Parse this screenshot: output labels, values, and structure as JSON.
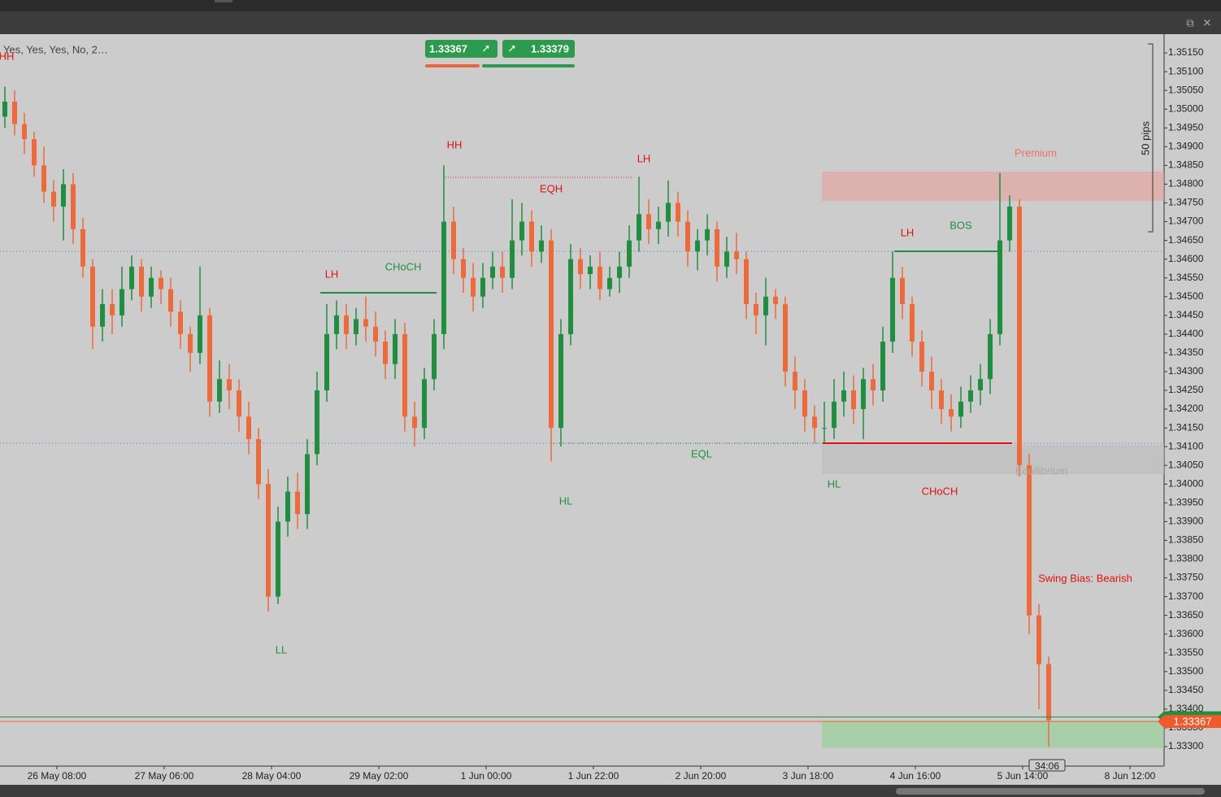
{
  "chart_data": {
    "type": "candlestick",
    "indicator_label": "Yes, Yes, Yes, No, 2…",
    "quotes": [
      1.33367,
      1.33379
    ],
    "last_price": 1.33367,
    "ask_price": 1.33379,
    "countdown": "34:06",
    "range_label": "50 pips",
    "annotations": [
      "HH",
      "HH",
      "LH",
      "EQH",
      "LH",
      "CHoCH",
      "LL",
      "HL",
      "EQL",
      "HL",
      "CHoCH",
      "LH",
      "BOS",
      "Premium",
      "Equilibrium",
      "Swing Bias: Bearish"
    ],
    "colors": {
      "up": "#1f8f3f",
      "down": "#ee6a3a"
    },
    "ylim": [
      1.33248,
      1.352
    ],
    "yticks": [
      {
        "value": 1.333,
        "label": "1.33300"
      },
      {
        "value": 1.3335,
        "label": "1.33350"
      },
      {
        "value": 1.334,
        "label": "1.33400"
      },
      {
        "value": 1.3345,
        "label": "1.33450"
      },
      {
        "value": 1.335,
        "label": "1.33500"
      },
      {
        "value": 1.3355,
        "label": "1.33550"
      },
      {
        "value": 1.336,
        "label": "1.33600"
      },
      {
        "value": 1.3365,
        "label": "1.33650"
      },
      {
        "value": 1.337,
        "label": "1.33700"
      },
      {
        "value": 1.3375,
        "label": "1.33750"
      },
      {
        "value": 1.338,
        "label": "1.33800"
      },
      {
        "value": 1.3385,
        "label": "1.33850"
      },
      {
        "value": 1.339,
        "label": "1.33900"
      },
      {
        "value": 1.3395,
        "label": "1.33950"
      },
      {
        "value": 1.34,
        "label": "1.34000"
      },
      {
        "value": 1.3405,
        "label": "1.34050"
      },
      {
        "value": 1.341,
        "label": "1.34100"
      },
      {
        "value": 1.3415,
        "label": "1.34150"
      },
      {
        "value": 1.342,
        "label": "1.34200"
      },
      {
        "value": 1.3425,
        "label": "1.34250"
      },
      {
        "value": 1.343,
        "label": "1.34300"
      },
      {
        "value": 1.3435,
        "label": "1.34350"
      },
      {
        "value": 1.344,
        "label": "1.34400"
      },
      {
        "value": 1.3445,
        "label": "1.34450"
      },
      {
        "value": 1.345,
        "label": "1.34500"
      },
      {
        "value": 1.3455,
        "label": "1.34550"
      },
      {
        "value": 1.346,
        "label": "1.34600"
      },
      {
        "value": 1.3465,
        "label": "1.34650"
      },
      {
        "value": 1.347,
        "label": "1.34700"
      },
      {
        "value": 1.3475,
        "label": "1.34750"
      },
      {
        "value": 1.348,
        "label": "1.34800"
      },
      {
        "value": 1.3485,
        "label": "1.34850"
      },
      {
        "value": 1.349,
        "label": "1.34900"
      },
      {
        "value": 1.3495,
        "label": "1.34950"
      },
      {
        "value": 1.35,
        "label": "1.35000"
      },
      {
        "value": 1.3505,
        "label": "1.35050"
      },
      {
        "value": 1.351,
        "label": "1.35100"
      },
      {
        "value": 1.3515,
        "label": "1.35150"
      }
    ],
    "xlim": [
      -0.5,
      118.83
    ],
    "xticks": [
      {
        "value": 5.33,
        "label": "26 May 08:00"
      },
      {
        "value": 16.33,
        "label": "27 May 06:00"
      },
      {
        "value": 27.33,
        "label": "28 May 04:00"
      },
      {
        "value": 38.33,
        "label": "29 May 02:00"
      },
      {
        "value": 49.33,
        "label": "1 Jun 00:00"
      },
      {
        "value": 60.33,
        "label": "1 Jun 22:00"
      },
      {
        "value": 71.33,
        "label": "2 Jun 20:00"
      },
      {
        "value": 82.33,
        "label": "3 Jun 18:00"
      },
      {
        "value": 93.33,
        "label": "4 Jun 16:00"
      },
      {
        "value": 104.33,
        "label": "5 Jun 14:00"
      },
      {
        "value": 115.33,
        "label": "8 Jun 12:00"
      }
    ],
    "open": [
      1.3498,
      1.3502,
      1.3496,
      1.3492,
      1.3485,
      1.3478,
      1.3474,
      1.348,
      1.3468,
      1.3458,
      1.3442,
      1.3448,
      1.3445,
      1.3452,
      1.3458,
      1.345,
      1.3455,
      1.3452,
      1.3446,
      1.344,
      1.3435,
      1.3445,
      1.3422,
      1.3428,
      1.3425,
      1.3418,
      1.3412,
      1.34,
      1.337,
      1.339,
      1.3398,
      1.3392,
      1.3408,
      1.3425,
      1.344,
      1.3445,
      1.344,
      1.3444,
      1.3442,
      1.3438,
      1.3432,
      1.344,
      1.3418,
      1.3415,
      1.3428,
      1.344,
      1.347,
      1.346,
      1.3455,
      1.345,
      1.3455,
      1.3458,
      1.3455,
      1.3465,
      1.347,
      1.3462,
      1.3465,
      1.3415,
      1.344,
      1.346,
      1.3456,
      1.3458,
      1.3452,
      1.3455,
      1.3458,
      1.3465,
      1.3472,
      1.3468,
      1.347,
      1.3475,
      1.347,
      1.3462,
      1.3465,
      1.3468,
      1.3458,
      1.3462,
      1.346,
      1.3448,
      1.3445,
      1.345,
      1.3448,
      1.343,
      1.3425,
      1.3418,
      1.3415,
      1.3415,
      1.3422,
      1.3425,
      1.342,
      1.3428,
      1.3425,
      1.3438,
      1.3455,
      1.3448,
      1.3438,
      1.343,
      1.3425,
      1.342,
      1.3418,
      1.3422,
      1.3425,
      1.3428,
      1.344,
      1.3465,
      1.3474,
      1.3405,
      1.3365,
      1.3352
    ],
    "high": [
      1.3506,
      1.3505,
      1.3499,
      1.3494,
      1.349,
      1.3481,
      1.3484,
      1.3483,
      1.3471,
      1.346,
      1.3452,
      1.3452,
      1.3458,
      1.3461,
      1.346,
      1.3458,
      1.3457,
      1.3455,
      1.3449,
      1.3442,
      1.3458,
      1.3447,
      1.3433,
      1.3432,
      1.3428,
      1.3422,
      1.3415,
      1.3404,
      1.3394,
      1.3402,
      1.3403,
      1.3412,
      1.343,
      1.3448,
      1.3449,
      1.3448,
      1.3447,
      1.345,
      1.3446,
      1.3441,
      1.3444,
      1.3443,
      1.3422,
      1.3431,
      1.3444,
      1.3485,
      1.3474,
      1.3463,
      1.3459,
      1.3459,
      1.3462,
      1.3462,
      1.3476,
      1.3475,
      1.3473,
      1.3469,
      1.3468,
      1.3444,
      1.3464,
      1.3463,
      1.3461,
      1.3462,
      1.3458,
      1.3462,
      1.3469,
      1.3482,
      1.3476,
      1.3474,
      1.3481,
      1.3478,
      1.3473,
      1.3468,
      1.3472,
      1.347,
      1.3466,
      1.3467,
      1.3462,
      1.3451,
      1.3455,
      1.3452,
      1.345,
      1.3434,
      1.3428,
      1.3421,
      1.3422,
      1.3428,
      1.343,
      1.3429,
      1.3431,
      1.3432,
      1.3442,
      1.3462,
      1.3458,
      1.345,
      1.3441,
      1.3434,
      1.3428,
      1.3424,
      1.3426,
      1.3429,
      1.3432,
      1.3444,
      1.3483,
      1.3477,
      1.3476,
      1.3408,
      1.3368,
      1.3354
    ],
    "low": [
      1.3495,
      1.3493,
      1.3488,
      1.3482,
      1.3475,
      1.347,
      1.3465,
      1.3464,
      1.3455,
      1.3436,
      1.3438,
      1.344,
      1.3442,
      1.3449,
      1.3446,
      1.3447,
      1.3448,
      1.3442,
      1.3436,
      1.343,
      1.3432,
      1.3418,
      1.3419,
      1.342,
      1.3414,
      1.3408,
      1.3396,
      1.3366,
      1.3368,
      1.3386,
      1.3388,
      1.3388,
      1.3405,
      1.3422,
      1.3436,
      1.3436,
      1.3437,
      1.3438,
      1.3434,
      1.3428,
      1.3428,
      1.3414,
      1.341,
      1.3412,
      1.3425,
      1.3436,
      1.3456,
      1.3451,
      1.3446,
      1.3447,
      1.3452,
      1.3451,
      1.3452,
      1.3461,
      1.3458,
      1.3459,
      1.3406,
      1.341,
      1.3437,
      1.3452,
      1.3452,
      1.3449,
      1.345,
      1.3451,
      1.3455,
      1.3462,
      1.3464,
      1.3464,
      1.3466,
      1.3466,
      1.3458,
      1.3457,
      1.3461,
      1.3454,
      1.3455,
      1.3456,
      1.3444,
      1.344,
      1.3437,
      1.3444,
      1.3426,
      1.342,
      1.3414,
      1.3411,
      1.3411,
      1.3412,
      1.3418,
      1.3416,
      1.3412,
      1.3421,
      1.3422,
      1.3435,
      1.3444,
      1.3434,
      1.3426,
      1.342,
      1.3416,
      1.3414,
      1.3415,
      1.3419,
      1.3421,
      1.3424,
      1.3437,
      1.3462,
      1.3402,
      1.336,
      1.334,
      1.333
    ],
    "close": [
      1.3502,
      1.3496,
      1.3492,
      1.3485,
      1.3478,
      1.3474,
      1.348,
      1.3468,
      1.3458,
      1.3442,
      1.3448,
      1.3445,
      1.3452,
      1.3458,
      1.345,
      1.3455,
      1.3452,
      1.3446,
      1.344,
      1.3435,
      1.3445,
      1.3422,
      1.3428,
      1.3425,
      1.3418,
      1.3412,
      1.34,
      1.337,
      1.339,
      1.3398,
      1.3392,
      1.3408,
      1.3425,
      1.344,
      1.3445,
      1.344,
      1.3444,
      1.3442,
      1.3438,
      1.3432,
      1.344,
      1.3418,
      1.3415,
      1.3428,
      1.344,
      1.347,
      1.346,
      1.3455,
      1.345,
      1.3455,
      1.3458,
      1.3455,
      1.3465,
      1.347,
      1.3462,
      1.3465,
      1.3415,
      1.344,
      1.346,
      1.3456,
      1.3458,
      1.3452,
      1.3455,
      1.3458,
      1.3465,
      1.3472,
      1.3468,
      1.347,
      1.3475,
      1.347,
      1.3462,
      1.3465,
      1.3468,
      1.3458,
      1.3462,
      1.346,
      1.3448,
      1.3445,
      1.345,
      1.3448,
      1.343,
      1.3425,
      1.3418,
      1.3415,
      1.3415,
      1.3422,
      1.3425,
      1.342,
      1.3428,
      1.3425,
      1.3438,
      1.3455,
      1.3448,
      1.3438,
      1.343,
      1.3425,
      1.342,
      1.3418,
      1.3422,
      1.3425,
      1.3428,
      1.344,
      1.3465,
      1.3474,
      1.3405,
      1.3365,
      1.3352,
      1.3337
    ]
  }
}
